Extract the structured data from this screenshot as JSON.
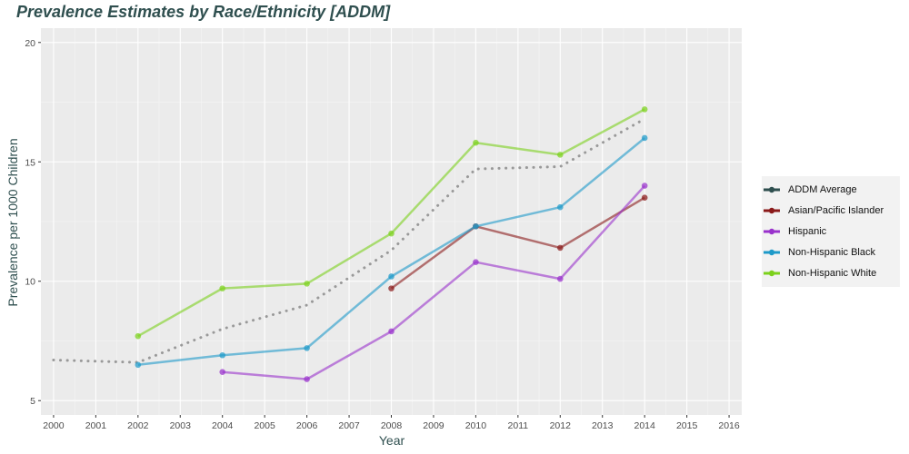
{
  "chart_data": {
    "type": "line",
    "title": "Prevalence Estimates by Race/Ethnicity [ADDM]",
    "xlabel": "Year",
    "ylabel": "Prevalence per 1000 Children",
    "xlim": [
      1999.7,
      2016.3
    ],
    "ylim": [
      4.4,
      20.6
    ],
    "x_ticks": [
      "2000",
      "2001",
      "2002",
      "2003",
      "2004",
      "2005",
      "2006",
      "2007",
      "2008",
      "2009",
      "2010",
      "2011",
      "2012",
      "2013",
      "2014",
      "2015",
      "2016"
    ],
    "y_ticks": [
      5,
      10,
      15,
      20
    ],
    "grid": true,
    "legend_position": "right",
    "series": [
      {
        "name": "ADDM Average",
        "color": "#2f4f4f",
        "style": "dotted",
        "x": [
          2000,
          2002,
          2004,
          2006,
          2008,
          2010,
          2012,
          2014
        ],
        "y": [
          6.7,
          6.6,
          8.0,
          9.0,
          11.3,
          14.7,
          14.8,
          16.8
        ]
      },
      {
        "name": "Asian/Pacific Islander",
        "color": "#8b1a1a",
        "style": "solid",
        "x": [
          2008,
          2010,
          2012,
          2014
        ],
        "y": [
          9.7,
          12.3,
          11.4,
          13.5
        ]
      },
      {
        "name": "Hispanic",
        "color": "#9932cc",
        "style": "solid",
        "x": [
          2004,
          2006,
          2008,
          2010,
          2012,
          2014
        ],
        "y": [
          6.2,
          5.9,
          7.9,
          10.8,
          10.1,
          14.0
        ]
      },
      {
        "name": "Non-Hispanic Black",
        "color": "#1e9ac9",
        "style": "solid",
        "x": [
          2002,
          2004,
          2006,
          2008,
          2010,
          2012,
          2014
        ],
        "y": [
          6.5,
          6.9,
          7.2,
          10.2,
          12.3,
          13.1,
          16.0
        ]
      },
      {
        "name": "Non-Hispanic White",
        "color": "#7cd11c",
        "style": "solid",
        "x": [
          2002,
          2004,
          2006,
          2008,
          2010,
          2012,
          2014
        ],
        "y": [
          7.7,
          9.7,
          9.9,
          12.0,
          15.8,
          15.3,
          17.2
        ]
      }
    ]
  }
}
